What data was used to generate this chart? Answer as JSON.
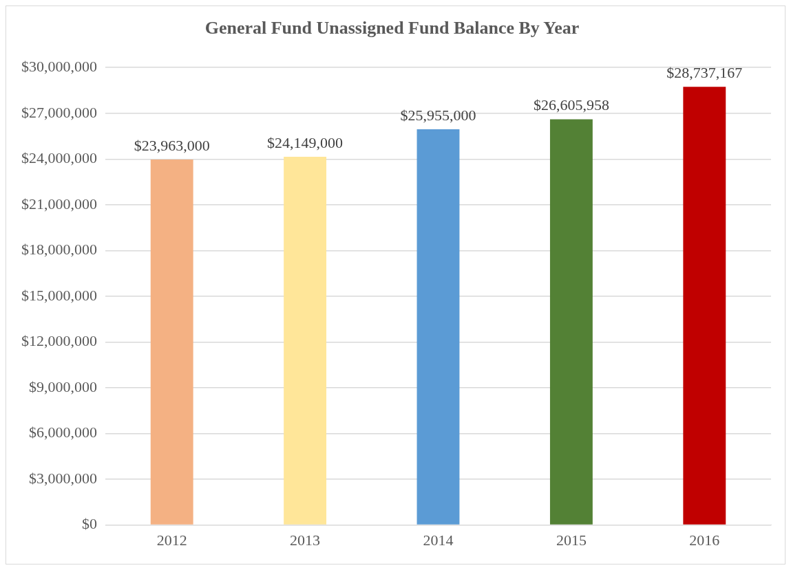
{
  "chart_data": {
    "type": "bar",
    "title": "General Fund Unassigned Fund Balance By Year",
    "categories": [
      "2012",
      "2013",
      "2014",
      "2015",
      "2016"
    ],
    "values": [
      23963000,
      24149000,
      25955000,
      26605958,
      28737167
    ],
    "colors": [
      "#f4b183",
      "#ffe699",
      "#5b9bd5",
      "#538135",
      "#c00000"
    ],
    "value_labels": [
      "$23,963,000",
      "$24,149,000",
      "$25,955,000",
      "$26,605,958",
      "$28,737,167"
    ],
    "ylim": [
      0,
      30000000
    ],
    "yticks": [
      {
        "value": 0,
        "label": "$0"
      },
      {
        "value": 3000000,
        "label": "$3,000,000"
      },
      {
        "value": 6000000,
        "label": "$6,000,000"
      },
      {
        "value": 9000000,
        "label": "$9,000,000"
      },
      {
        "value": 12000000,
        "label": "$12,000,000"
      },
      {
        "value": 15000000,
        "label": "$15,000,000"
      },
      {
        "value": 18000000,
        "label": "$18,000,000"
      },
      {
        "value": 21000000,
        "label": "$21,000,000"
      },
      {
        "value": 24000000,
        "label": "$24,000,000"
      },
      {
        "value": 27000000,
        "label": "$27,000,000"
      },
      {
        "value": 30000000,
        "label": "$30,000,000"
      }
    ],
    "grid": "y",
    "legend": false
  }
}
